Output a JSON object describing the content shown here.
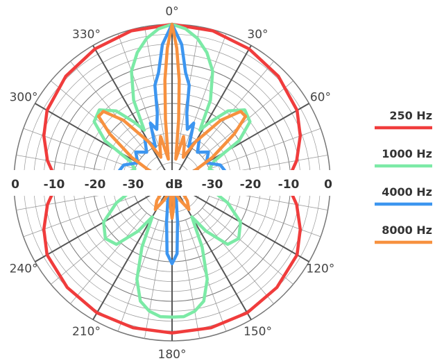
{
  "chart_data": {
    "type": "polar-line",
    "title": "",
    "radial_unit": "dB",
    "radial_range": [
      -40,
      0
    ],
    "radial_tick_labels": [
      "0",
      "-10",
      "-20",
      "-30",
      "dB",
      "-30",
      "-20",
      "-10",
      "0"
    ],
    "angle_tick_labels": [
      "0°",
      "30°",
      "60°",
      "120°",
      "150°",
      "180°",
      "210°",
      "240°",
      "300°",
      "330°"
    ],
    "angle_ticks": [
      0,
      30,
      60,
      120,
      150,
      180,
      210,
      240,
      300,
      330
    ],
    "legend_position": "right",
    "series": [
      {
        "name": "250 Hz",
        "color": "#f03c3c",
        "points": [
          [
            0,
            0
          ],
          [
            15,
            -0.3
          ],
          [
            30,
            -1
          ],
          [
            45,
            -2
          ],
          [
            60,
            -3.5
          ],
          [
            70,
            -5.5
          ],
          [
            80,
            -8
          ],
          [
            90,
            -11
          ],
          [
            100,
            -8
          ],
          [
            110,
            -5.5
          ],
          [
            120,
            -3.5
          ],
          [
            135,
            -2.5
          ],
          [
            150,
            -2
          ],
          [
            165,
            -2
          ],
          [
            180,
            -2
          ]
        ]
      },
      {
        "name": "1000 Hz",
        "color": "#7ceaa6",
        "points": [
          [
            0,
            0
          ],
          [
            5,
            -1
          ],
          [
            10,
            -3
          ],
          [
            15,
            -6
          ],
          [
            20,
            -10
          ],
          [
            25,
            -17
          ],
          [
            28,
            -25
          ],
          [
            32,
            -22
          ],
          [
            38,
            -17
          ],
          [
            45,
            -14
          ],
          [
            52,
            -15
          ],
          [
            58,
            -20
          ],
          [
            63,
            -28
          ],
          [
            70,
            -30
          ],
          [
            80,
            -28
          ],
          [
            90,
            -30
          ],
          [
            100,
            -30
          ],
          [
            110,
            -25
          ],
          [
            120,
            -20
          ],
          [
            130,
            -18
          ],
          [
            138,
            -19
          ],
          [
            145,
            -25
          ],
          [
            150,
            -30
          ],
          [
            155,
            -22
          ],
          [
            160,
            -14
          ],
          [
            165,
            -9
          ],
          [
            170,
            -7
          ],
          [
            175,
            -6
          ],
          [
            180,
            -6
          ]
        ]
      },
      {
        "name": "4000 Hz",
        "color": "#3d96f0",
        "points": [
          [
            0,
            0
          ],
          [
            4,
            -5
          ],
          [
            7,
            -12
          ],
          [
            10,
            -15
          ],
          [
            12,
            -22
          ],
          [
            16,
            -26
          ],
          [
            20,
            -24
          ],
          [
            25,
            -30
          ],
          [
            32,
            -27
          ],
          [
            40,
            -30
          ],
          [
            50,
            -28
          ],
          [
            60,
            -30
          ],
          [
            70,
            -27
          ],
          [
            80,
            -26
          ],
          [
            88,
            -28
          ],
          [
            95,
            -38
          ],
          [
            120,
            -38
          ],
          [
            150,
            -38
          ],
          [
            165,
            -36
          ],
          [
            172,
            -30
          ],
          [
            176,
            -22
          ],
          [
            180,
            -19.5
          ]
        ]
      },
      {
        "name": "8000 Hz",
        "color": "#f7913f",
        "points": [
          [
            0,
            0
          ],
          [
            2,
            -6
          ],
          [
            4,
            -14
          ],
          [
            6,
            -24
          ],
          [
            9,
            -34
          ],
          [
            14,
            -28
          ],
          [
            18,
            -30
          ],
          [
            24,
            -33
          ],
          [
            30,
            -28
          ],
          [
            38,
            -20
          ],
          [
            44,
            -15
          ],
          [
            48,
            -15
          ],
          [
            52,
            -20
          ],
          [
            58,
            -28
          ],
          [
            65,
            -35
          ],
          [
            80,
            -38
          ],
          [
            120,
            -38
          ],
          [
            140,
            -34
          ],
          [
            148,
            -32
          ],
          [
            155,
            -35
          ],
          [
            170,
            -38
          ],
          [
            176,
            -34
          ],
          [
            180,
            -31
          ]
        ]
      }
    ]
  }
}
